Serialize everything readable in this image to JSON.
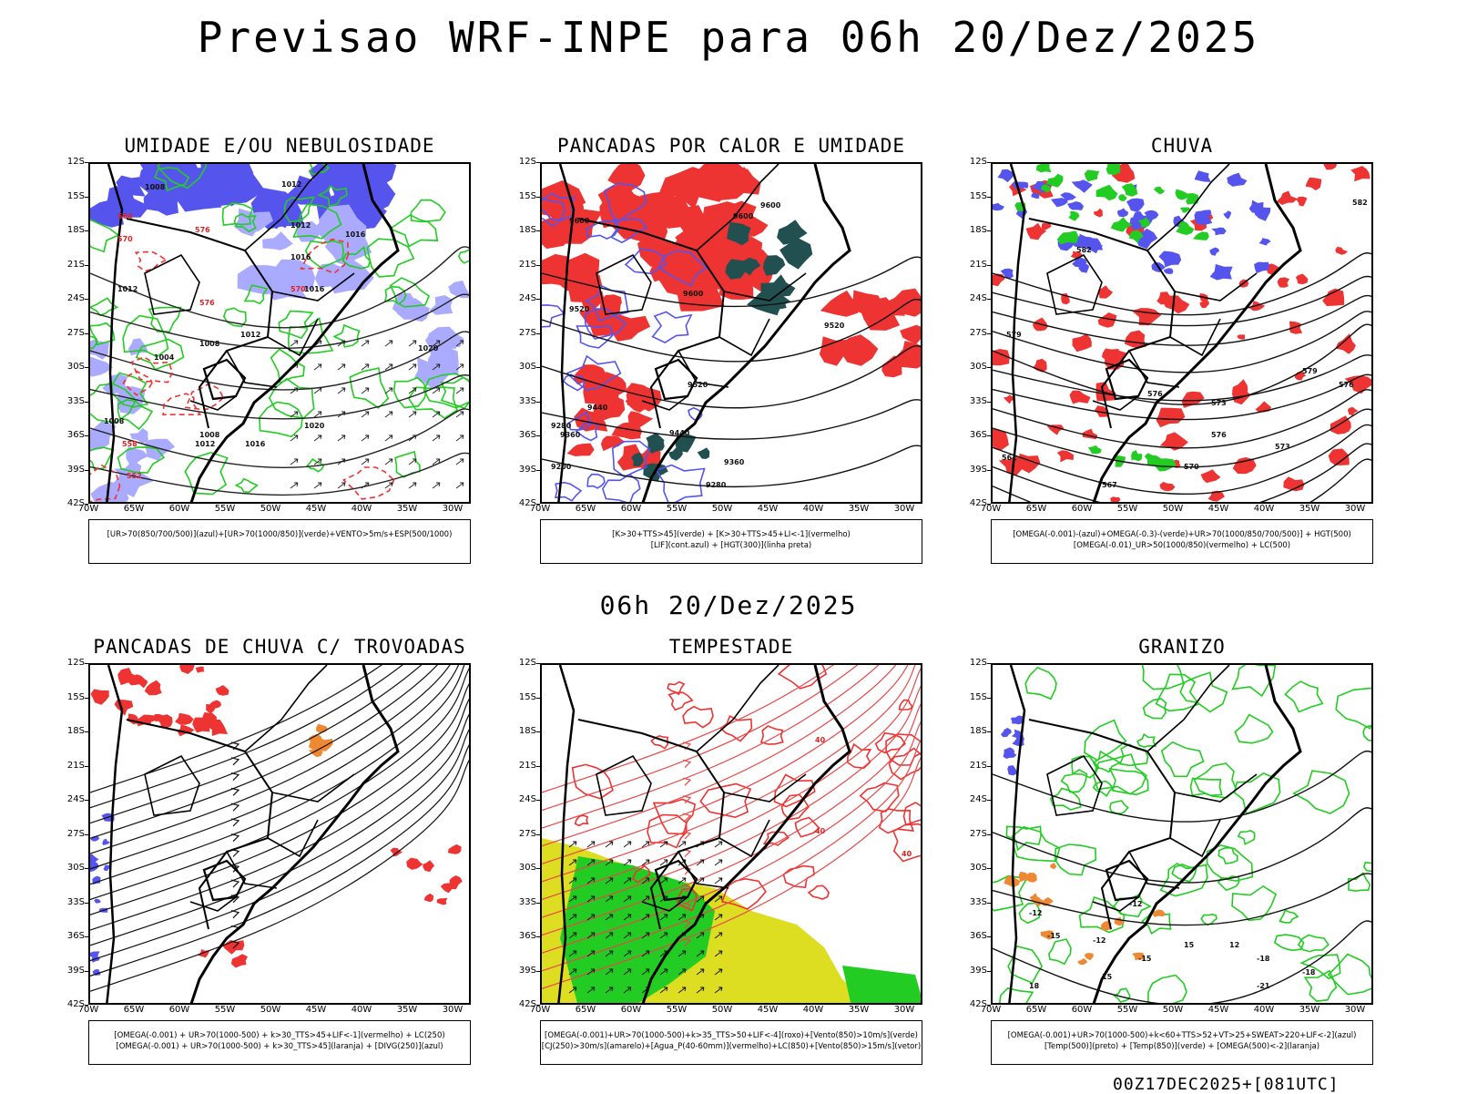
{
  "title": "Previsao WRF-INPE  para 06h 20/Dez/2025",
  "subtitle": "06h 20/Dez/2025",
  "footer": "00Z17DEC2025+[081UTC]",
  "colors": {
    "blue": "#5555ee",
    "lightblue": "#aaaaff",
    "green": "#22cc22",
    "red": "#ee3333",
    "dark_teal": "#224f4f",
    "yellow": "#dddd22",
    "orange": "#ee8833"
  },
  "axes": {
    "lat_ticks": [
      "12S",
      "15S",
      "18S",
      "21S",
      "24S",
      "27S",
      "30S",
      "33S",
      "36S",
      "39S",
      "42S"
    ],
    "lon_ticks": [
      "70W",
      "65W",
      "60W",
      "55W",
      "50W",
      "45W",
      "40W",
      "35W",
      "30W"
    ]
  },
  "panels": [
    {
      "title": "UMIDADE E/OU NEBULOSIDADE",
      "legend": [
        "[UR>70(850/700/500)](azul)+[UR>70(1000/850)](verde)+VENTO>5m/s+ESP(500/1000)"
      ],
      "labels": [
        "1008",
        "1012",
        "1012",
        "1016",
        "1016",
        "1016",
        "1020",
        "1012",
        "1008",
        "1004",
        "1012",
        "1016",
        "1020",
        "1008",
        "576",
        "570",
        "564",
        "558",
        "552",
        "576",
        "570",
        "1008",
        "1012"
      ]
    },
    {
      "title": "PANCADAS POR CALOR E UMIDADE",
      "legend": [
        "[K>30+TTS>45](verde) + [K>30+TTS>45+LI<-1](vermelho)",
        "[LIF](cont.azul) + [HGT(300)](linha preta)"
      ],
      "labels": [
        "9600",
        "9600",
        "9600",
        "9520",
        "9520",
        "9440",
        "9440",
        "9360",
        "9360",
        "9280",
        "9280",
        "9200",
        "9520",
        "9600"
      ]
    },
    {
      "title": "CHUVA",
      "legend": [
        "[OMEGA(-0.001)-(azul)+OMEGA(-0.3)-(verde)+UR>70(1000/850/700/500)] + HGT(500)",
        "[OMEGA(-0.01)_UR>50(1000/850)(vermelho) + LC(500)"
      ],
      "labels": [
        "582",
        "582",
        "579",
        "576",
        "576",
        "573",
        "570",
        "567",
        "561",
        "573",
        "576",
        "579"
      ]
    },
    {
      "title": "PANCADAS DE CHUVA C/ TROVOADAS",
      "legend": [
        "[OMEGA(-0.001) + UR>70(1000-500) + k>30_TTS>45+LIF<-1](vermelho) + LC(250)",
        "[OMEGA(-0.001) + UR>70(1000-500) + k>30_TTS>45](laranja) + [DIVG(250)](azul)"
      ],
      "labels": []
    },
    {
      "title": "TEMPESTADE",
      "legend": [
        "[OMEGA(-0.001)+UR>70(1000-500)+k>35_TTS>50+LIF<-4](roxo)+[Vento(850)>10m/s](verde)",
        "[CJ(250)>30m/s](amarelo)+[Agua_P(40-60mm)](vermelho)+LC(850)+[Vento(850)>15m/s](vetor)"
      ],
      "labels": [
        "40",
        "40",
        "40"
      ]
    },
    {
      "title": "GRANIZO",
      "legend": [
        "[OMEGA(-0.001)+UR>70(1000-500)+k<60+TTS>52+VT>25+SWEAT>220+LIF<-2](azul)",
        "[Temp(500)](preto) + [Temp(850)](verde) + [OMEGA(500)<-2](laranja)"
      ],
      "labels": [
        "-12",
        "-12",
        "-12",
        "-15",
        "-15",
        "-18",
        "-18",
        "-21",
        "12",
        "15",
        "15",
        "18"
      ]
    }
  ]
}
